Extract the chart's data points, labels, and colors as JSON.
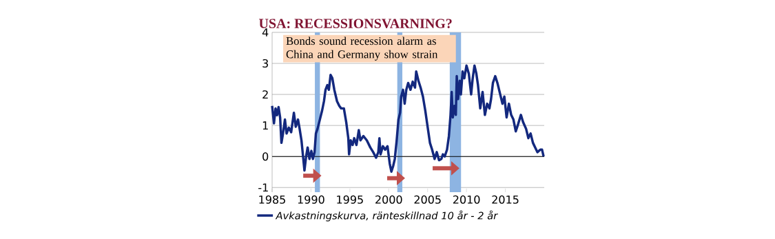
{
  "chart_data": {
    "type": "line",
    "title": "USA: RECESSIONSVARNING?",
    "annotations": [
      "Bonds sound recession alarm as China and Germany show strain"
    ],
    "series": [
      {
        "name": "Avkastningskurva, ränteskillnad 10 år - 2 år",
        "color": "#13287e",
        "x": [
          1985.0,
          1985.24,
          1985.44,
          1985.63,
          1985.83,
          1986.03,
          1986.2,
          1986.4,
          1986.65,
          1986.86,
          1987.15,
          1987.45,
          1987.8,
          1988.04,
          1988.33,
          1988.54,
          1988.78,
          1988.98,
          1989.16,
          1989.37,
          1989.57,
          1989.8,
          1990.05,
          1990.25,
          1990.46,
          1990.63,
          1990.84,
          1991.14,
          1991.43,
          1991.67,
          1991.87,
          1992.1,
          1992.3,
          1992.52,
          1992.75,
          1993.0,
          1993.35,
          1993.64,
          1993.88,
          1994.23,
          1994.53,
          1994.8,
          1994.9,
          1995.1,
          1995.35,
          1995.56,
          1995.85,
          1996.15,
          1996.36,
          1996.74,
          1997.18,
          1997.63,
          1998.0,
          1998.37,
          1998.66,
          1998.8,
          1998.95,
          1999.25,
          1999.54,
          1999.84,
          2000.13,
          2000.34,
          2000.58,
          2000.78,
          2001.02,
          2001.25,
          2001.46,
          2001.6,
          2001.84,
          2002.05,
          2002.26,
          2002.5,
          2002.8,
          2003.08,
          2003.38,
          2003.53,
          2003.82,
          2004.1,
          2004.4,
          2004.7,
          2005.0,
          2005.3,
          2005.58,
          2005.9,
          2006.18,
          2006.47,
          2006.77,
          2006.97,
          2007.2,
          2007.5,
          2007.74,
          2007.95,
          2008.1,
          2008.24,
          2008.45,
          2008.63,
          2008.75,
          2008.92,
          2009.13,
          2009.28,
          2009.5,
          2009.72,
          2010.0,
          2010.3,
          2010.6,
          2010.8,
          2011.03,
          2011.27,
          2011.48,
          2011.77,
          2012.07,
          2012.37,
          2012.66,
          2012.95,
          2013.16,
          2013.4,
          2013.7,
          2013.98,
          2014.34,
          2014.63,
          2014.87,
          2015.16,
          2015.46,
          2015.75,
          2016.04,
          2016.34,
          2016.64,
          2017.0,
          2017.28,
          2017.67,
          2017.96,
          2018.25,
          2018.55,
          2018.84,
          2019.13,
          2019.5,
          2019.72,
          2019.92
        ],
        "values": [
          1.63,
          1.07,
          1.55,
          1.33,
          1.59,
          1.26,
          0.44,
          0.74,
          1.19,
          0.74,
          0.93,
          0.78,
          1.41,
          0.96,
          1.19,
          0.89,
          0.51,
          0.0,
          -0.45,
          0.0,
          0.29,
          -0.08,
          0.18,
          -0.08,
          0.14,
          0.74,
          0.89,
          1.19,
          1.48,
          1.78,
          2.15,
          2.3,
          2.15,
          2.63,
          2.52,
          2.15,
          1.78,
          1.63,
          1.55,
          1.55,
          1.11,
          0.59,
          0.07,
          0.52,
          0.37,
          0.59,
          0.37,
          0.85,
          0.52,
          0.66,
          0.52,
          0.29,
          0.14,
          -0.04,
          0.14,
          0.59,
          0.07,
          0.33,
          0.22,
          0.33,
          -0.23,
          -0.49,
          -0.3,
          -0.08,
          0.51,
          1.19,
          1.41,
          1.93,
          2.15,
          1.7,
          2.15,
          2.37,
          2.15,
          2.41,
          2.22,
          2.74,
          2.44,
          2.22,
          1.93,
          1.48,
          0.96,
          0.44,
          0.22,
          -0.08,
          0.14,
          -0.12,
          -0.08,
          0.07,
          0.0,
          0.22,
          0.66,
          1.34,
          2.08,
          1.26,
          1.63,
          1.34,
          2.59,
          1.85,
          2.44,
          2.0,
          2.74,
          2.52,
          2.93,
          2.67,
          2.0,
          2.52,
          2.93,
          2.67,
          2.3,
          1.55,
          2.08,
          1.34,
          1.7,
          1.55,
          1.85,
          2.37,
          2.59,
          2.37,
          2.0,
          1.7,
          1.93,
          1.26,
          1.7,
          1.34,
          1.19,
          0.81,
          1.04,
          1.34,
          1.11,
          0.89,
          0.59,
          0.74,
          0.44,
          0.29,
          0.14,
          0.22,
          0.22,
          0.0
        ]
      }
    ],
    "xlim": [
      1985,
      2020
    ],
    "xticks": [
      1985,
      1990,
      1995,
      2000,
      2005,
      2010,
      2015
    ],
    "ylim": [
      -1.15,
      4
    ],
    "yticks": [
      -1,
      0,
      1,
      2,
      3,
      4
    ],
    "grid": "y",
    "legend": "bottom left",
    "marker": "none",
    "line_style": "solid",
    "ref_lines": [
      {
        "axis": "y",
        "value": 0,
        "color": "#000000"
      }
    ],
    "bands": [
      {
        "axis": "x",
        "from": 1990.5,
        "to": 1991.15,
        "color": "#8db4e2"
      },
      {
        "axis": "x",
        "from": 2001.1,
        "to": 2001.75,
        "color": "#8db4e2"
      },
      {
        "axis": "x",
        "from": 2007.85,
        "to": 2009.3,
        "color": "#8db4e2"
      }
    ]
  }
}
